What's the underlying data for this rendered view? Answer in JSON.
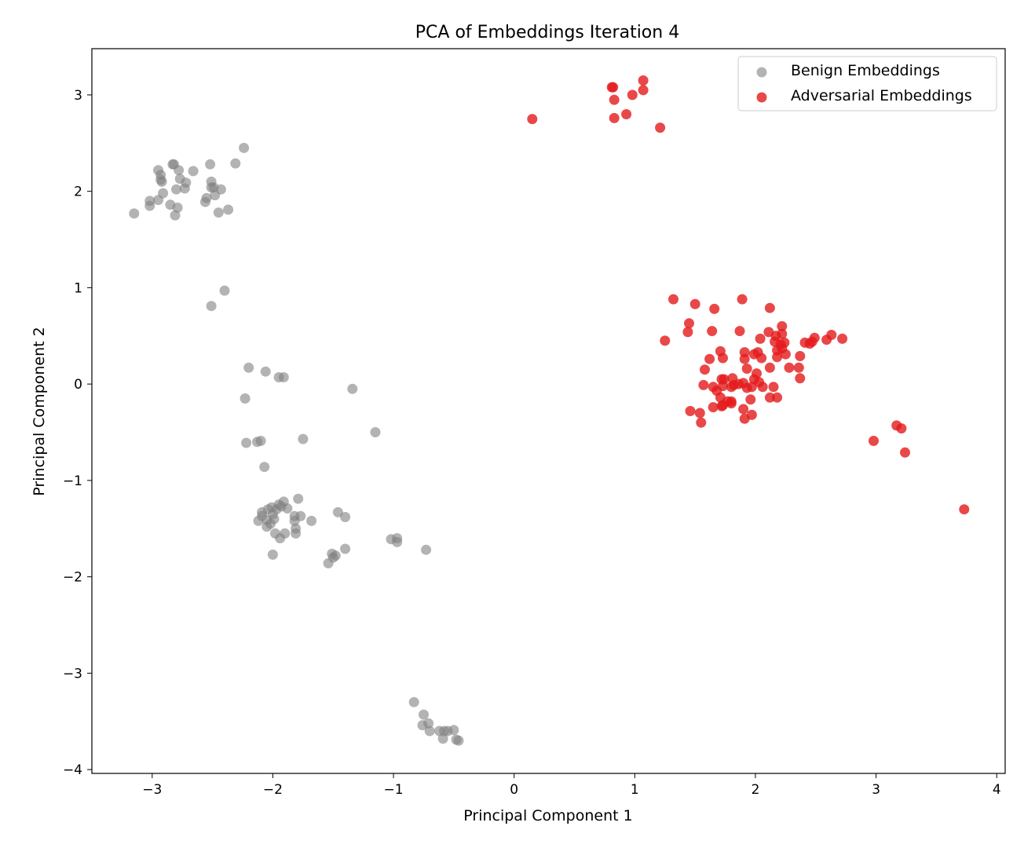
{
  "chart_data": {
    "type": "scatter",
    "title": "PCA of Embeddings Iteration 4",
    "xlabel": "Principal Component 1",
    "ylabel": "Principal Component 2",
    "xlim": [
      -3.5,
      4.07
    ],
    "ylim": [
      -4.04,
      3.48
    ],
    "xticks": [
      -3,
      -2,
      -1,
      0,
      1,
      2,
      3,
      4
    ],
    "yticks": [
      -4,
      -3,
      -2,
      -1,
      0,
      1,
      2,
      3
    ],
    "xtick_labels": [
      "−3",
      "−2",
      "−1",
      "0",
      "1",
      "2",
      "3",
      "4"
    ],
    "ytick_labels": [
      "−4",
      "−3",
      "−2",
      "−1",
      "0",
      "1",
      "2",
      "3"
    ],
    "grid": false,
    "legend_position": "top-right",
    "series": [
      {
        "name": "Benign Embeddings",
        "color": "#808080",
        "opacity": 0.6,
        "points": [
          [
            -3.15,
            1.77
          ],
          [
            -3.02,
            1.85
          ],
          [
            -3.02,
            1.9
          ],
          [
            -2.95,
            1.91
          ],
          [
            -2.95,
            2.22
          ],
          [
            -2.93,
            2.17
          ],
          [
            -2.93,
            2.12
          ],
          [
            -2.92,
            2.1
          ],
          [
            -2.91,
            1.98
          ],
          [
            -2.85,
            1.86
          ],
          [
            -2.83,
            2.28
          ],
          [
            -2.82,
            2.28
          ],
          [
            -2.81,
            1.75
          ],
          [
            -2.8,
            2.02
          ],
          [
            -2.79,
            1.83
          ],
          [
            -2.78,
            2.22
          ],
          [
            -2.77,
            2.13
          ],
          [
            -2.73,
            2.03
          ],
          [
            -2.72,
            2.09
          ],
          [
            -2.66,
            2.21
          ],
          [
            -2.56,
            1.89
          ],
          [
            -2.55,
            1.93
          ],
          [
            -2.52,
            2.28
          ],
          [
            -2.51,
            2.1
          ],
          [
            -2.51,
            2.04
          ],
          [
            -2.49,
            2.04
          ],
          [
            -2.48,
            1.96
          ],
          [
            -2.45,
            1.78
          ],
          [
            -2.43,
            2.02
          ],
          [
            -2.37,
            1.81
          ],
          [
            -2.31,
            2.29
          ],
          [
            -2.24,
            2.45
          ],
          [
            -2.51,
            0.81
          ],
          [
            -2.4,
            0.97
          ],
          [
            -2.2,
            0.17
          ],
          [
            -2.06,
            0.13
          ],
          [
            -1.95,
            0.07
          ],
          [
            -1.91,
            0.07
          ],
          [
            -2.23,
            -0.15
          ],
          [
            -1.34,
            -0.05
          ],
          [
            -2.22,
            -0.61
          ],
          [
            -2.13,
            -0.6
          ],
          [
            -2.1,
            -0.59
          ],
          [
            -1.75,
            -0.57
          ],
          [
            -1.15,
            -0.5
          ],
          [
            -2.07,
            -0.86
          ],
          [
            -2.12,
            -1.42
          ],
          [
            -2.09,
            -1.37
          ],
          [
            -2.09,
            -1.33
          ],
          [
            -2.05,
            -1.41
          ],
          [
            -2.05,
            -1.48
          ],
          [
            -2.04,
            -1.3
          ],
          [
            -2.02,
            -1.45
          ],
          [
            -2.01,
            -1.28
          ],
          [
            -2.0,
            -1.35
          ],
          [
            -1.99,
            -1.4
          ],
          [
            -1.98,
            -1.55
          ],
          [
            -1.97,
            -1.3
          ],
          [
            -1.95,
            -1.25
          ],
          [
            -1.94,
            -1.6
          ],
          [
            -1.93,
            -1.27
          ],
          [
            -1.91,
            -1.22
          ],
          [
            -1.9,
            -1.55
          ],
          [
            -1.88,
            -1.29
          ],
          [
            -1.82,
            -1.37
          ],
          [
            -1.82,
            -1.42
          ],
          [
            -1.81,
            -1.5
          ],
          [
            -1.81,
            -1.55
          ],
          [
            -1.79,
            -1.19
          ],
          [
            -1.77,
            -1.37
          ],
          [
            -1.68,
            -1.42
          ],
          [
            -2.0,
            -1.77
          ],
          [
            -1.46,
            -1.33
          ],
          [
            -1.4,
            -1.38
          ],
          [
            -1.4,
            -1.71
          ],
          [
            -1.51,
            -1.76
          ],
          [
            -1.5,
            -1.8
          ],
          [
            -1.48,
            -1.78
          ],
          [
            -1.54,
            -1.86
          ],
          [
            -1.02,
            -1.61
          ],
          [
            -0.97,
            -1.64
          ],
          [
            -0.97,
            -1.6
          ],
          [
            -0.73,
            -1.72
          ],
          [
            -0.83,
            -3.3
          ],
          [
            -0.75,
            -3.43
          ],
          [
            -0.76,
            -3.54
          ],
          [
            -0.71,
            -3.52
          ],
          [
            -0.7,
            -3.6
          ],
          [
            -0.62,
            -3.6
          ],
          [
            -0.59,
            -3.68
          ],
          [
            -0.58,
            -3.6
          ],
          [
            -0.55,
            -3.6
          ],
          [
            -0.5,
            -3.59
          ],
          [
            -0.48,
            -3.69
          ],
          [
            -0.46,
            -3.7
          ]
        ]
      },
      {
        "name": "Adversarial Embeddings",
        "color": "#e41a1c",
        "opacity": 0.8,
        "points": [
          [
            0.15,
            2.75
          ],
          [
            0.81,
            3.08
          ],
          [
            0.82,
            3.08
          ],
          [
            0.83,
            2.95
          ],
          [
            0.83,
            2.76
          ],
          [
            0.93,
            2.8
          ],
          [
            0.98,
            3.0
          ],
          [
            1.07,
            3.15
          ],
          [
            1.07,
            3.05
          ],
          [
            1.21,
            2.66
          ],
          [
            1.32,
            0.88
          ],
          [
            1.5,
            0.83
          ],
          [
            1.66,
            0.78
          ],
          [
            1.89,
            0.88
          ],
          [
            2.12,
            0.79
          ],
          [
            1.45,
            0.63
          ],
          [
            1.44,
            0.54
          ],
          [
            1.25,
            0.45
          ],
          [
            1.64,
            0.55
          ],
          [
            1.87,
            0.55
          ],
          [
            2.11,
            0.54
          ],
          [
            2.17,
            0.5
          ],
          [
            2.22,
            0.6
          ],
          [
            2.22,
            0.52
          ],
          [
            2.04,
            0.47
          ],
          [
            2.16,
            0.44
          ],
          [
            2.21,
            0.41
          ],
          [
            2.24,
            0.43
          ],
          [
            2.41,
            0.43
          ],
          [
            2.47,
            0.44
          ],
          [
            2.49,
            0.48
          ],
          [
            2.59,
            0.46
          ],
          [
            2.63,
            0.51
          ],
          [
            2.72,
            0.47
          ],
          [
            2.45,
            0.42
          ],
          [
            1.71,
            0.34
          ],
          [
            1.91,
            0.33
          ],
          [
            1.99,
            0.31
          ],
          [
            2.02,
            0.33
          ],
          [
            2.05,
            0.27
          ],
          [
            2.18,
            0.35
          ],
          [
            2.22,
            0.37
          ],
          [
            2.25,
            0.31
          ],
          [
            2.37,
            0.29
          ],
          [
            1.62,
            0.26
          ],
          [
            1.73,
            0.27
          ],
          [
            1.91,
            0.26
          ],
          [
            2.18,
            0.28
          ],
          [
            2.28,
            0.17
          ],
          [
            2.36,
            0.17
          ],
          [
            1.58,
            0.15
          ],
          [
            1.93,
            0.16
          ],
          [
            2.12,
            0.17
          ],
          [
            2.01,
            0.11
          ],
          [
            2.37,
            0.06
          ],
          [
            1.72,
            0.05
          ],
          [
            1.74,
            0.05
          ],
          [
            1.81,
            0.06
          ],
          [
            1.99,
            0.05
          ],
          [
            2.03,
            0.02
          ],
          [
            1.57,
            -0.01
          ],
          [
            1.65,
            -0.03
          ],
          [
            1.68,
            -0.07
          ],
          [
            1.73,
            -0.02
          ],
          [
            1.8,
            -0.03
          ],
          [
            1.82,
            -0.01
          ],
          [
            1.86,
            0.0
          ],
          [
            1.9,
            0.01
          ],
          [
            1.93,
            -0.04
          ],
          [
            1.97,
            -0.03
          ],
          [
            2.06,
            -0.03
          ],
          [
            2.15,
            -0.03
          ],
          [
            1.71,
            -0.14
          ],
          [
            1.77,
            -0.18
          ],
          [
            1.8,
            -0.2
          ],
          [
            1.96,
            -0.16
          ],
          [
            2.12,
            -0.14
          ],
          [
            2.18,
            -0.14
          ],
          [
            1.46,
            -0.28
          ],
          [
            1.54,
            -0.3
          ],
          [
            1.65,
            -0.24
          ],
          [
            1.72,
            -0.23
          ],
          [
            1.73,
            -0.22
          ],
          [
            1.8,
            -0.18
          ],
          [
            1.9,
            -0.26
          ],
          [
            1.97,
            -0.32
          ],
          [
            1.91,
            -0.36
          ],
          [
            1.55,
            -0.4
          ],
          [
            2.98,
            -0.59
          ],
          [
            3.17,
            -0.43
          ],
          [
            3.21,
            -0.46
          ],
          [
            3.24,
            -0.71
          ],
          [
            3.73,
            -1.3
          ]
        ]
      }
    ]
  }
}
